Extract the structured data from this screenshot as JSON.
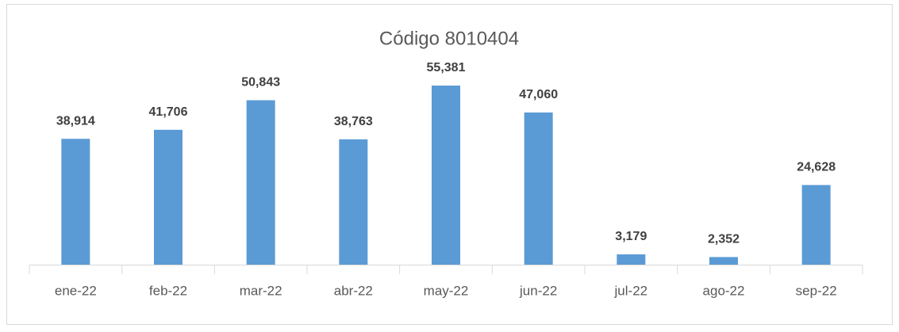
{
  "chart_data": {
    "type": "bar",
    "title": "Código 8010404",
    "categories": [
      "ene-22",
      "feb-22",
      "mar-22",
      "abr-22",
      "may-22",
      "jun-22",
      "jul-22",
      "ago-22",
      "sep-22"
    ],
    "values": [
      38914,
      41706,
      50843,
      38763,
      55381,
      47060,
      3179,
      2352,
      24628
    ],
    "value_labels": [
      "38,914",
      "41,706",
      "50,843",
      "38,763",
      "55,381",
      "47,060",
      "3,179",
      "2,352",
      "24,628"
    ],
    "color": "#5b9bd5"
  }
}
